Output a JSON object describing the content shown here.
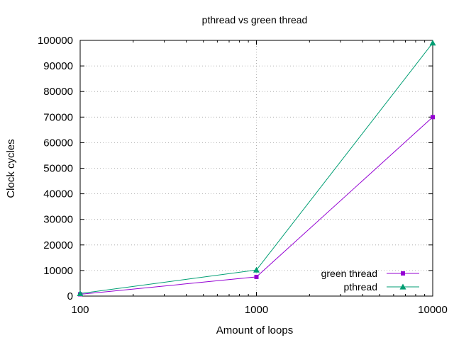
{
  "chart_data": {
    "type": "line",
    "title": "pthread vs green thread",
    "xlabel": "Amount of loops",
    "ylabel": "Clock cycles",
    "x_scale": "log",
    "x": [
      100,
      1000,
      10000
    ],
    "x_ticks": [
      "100",
      "1000",
      "10000"
    ],
    "xlim": [
      100,
      10000
    ],
    "ylim": [
      0,
      100000
    ],
    "y_ticks": [
      "0",
      "10000",
      "20000",
      "30000",
      "40000",
      "50000",
      "60000",
      "70000",
      "80000",
      "90000",
      "100000"
    ],
    "grid": true,
    "legend_position": "bottom-right",
    "series": [
      {
        "name": "green thread",
        "values": [
          700,
          7500,
          70000
        ],
        "color": "#9400d3",
        "marker": "square"
      },
      {
        "name": "pthread",
        "values": [
          1000,
          10200,
          99000
        ],
        "color": "#009e73",
        "marker": "triangle"
      }
    ]
  }
}
